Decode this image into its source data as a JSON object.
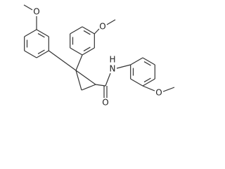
{
  "atoms": [
    {
      "label": "O"
    },
    {
      "label": "O"
    },
    {
      "label": "H"
    },
    {
      "label": "N"
    },
    {
      "label": "O"
    },
    {
      "label": "O"
    }
  ]
}
